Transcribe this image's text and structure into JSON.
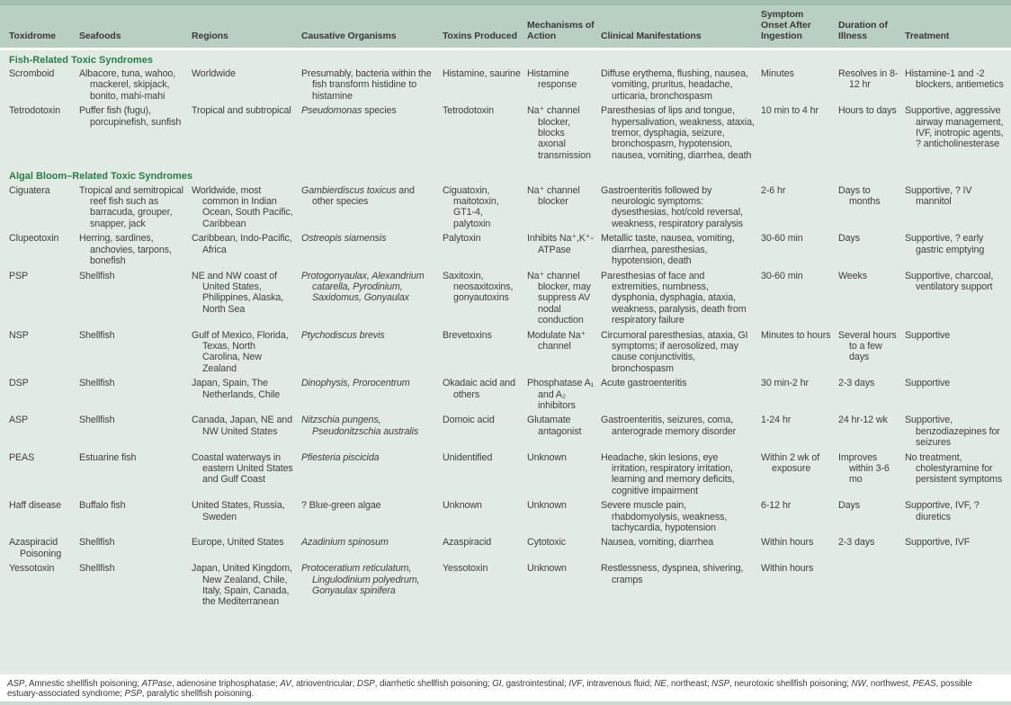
{
  "colors": {
    "header_bg": "#b9cfc2",
    "body_bg": "#e1eae3",
    "section_heading": "#2a7c49",
    "top_strip": "#a3c0af",
    "bottom_strip": "#cbdccf"
  },
  "table": {
    "columns": [
      "Toxidrome",
      "Seafoods",
      "Regions",
      "Causative Organisms",
      "Toxins Produced",
      "Mechanisms of Action",
      "Clinical Manifestations",
      "Symptom Onset After Ingestion",
      "Duration of Illness",
      "Treatment"
    ],
    "sections": [
      {
        "title": "Fish-Related Toxic Syndromes",
        "rows": [
          [
            "Scromboid",
            "Albacore, tuna, wahoo, mackerel, skipjack, bonito, mahi-mahi",
            "Worldwide",
            "Presumably, bacteria within the fish transform histidine to histamine",
            "Histamine, saurine",
            "Histamine response",
            "Diffuse erythema, flushing, nausea, vomiting, pruritus, headache, urticaria, bronchospasm",
            "Minutes",
            "Resolves in 8-12 hr",
            "Histamine-1 and -2 blockers, antiemetics"
          ],
          [
            "Tetrodotoxin",
            "Puffer fish (fugu), porcupinefish, sunfish",
            "Tropical and subtropical",
            [
              {
                "i": "Pseudomonas"
              },
              " species"
            ],
            "Tetrodotoxin",
            "Na⁺ channel blocker, blocks axonal transmission",
            "Paresthesias of lips and tongue, hypersalivation, weakness, ataxia, tremor, dysphagia, seizure, bronchospasm, hypotension, nausea, vomiting, diarrhea, death",
            "10 min to 4 hr",
            "Hours to days",
            "Supportive, aggressive airway management, IVF, inotropic agents, ? anticholinesterase"
          ]
        ]
      },
      {
        "title": "Algal Bloom–Related Toxic Syndromes",
        "rows": [
          [
            "Ciguatera",
            "Tropical and semitropical reef fish such as barracuda, grouper, snapper, jack",
            "Worldwide, most common in Indian Ocean, South Pacific, Caribbean",
            [
              {
                "i": "Gambierdiscus toxicus"
              },
              " and other species"
            ],
            "Ciguatoxin, maitotoxin, GT1-4, palytoxin",
            "Na⁺ channel blocker",
            "Gastroenteritis followed by neurologic symptoms: dysesthesias, hot/cold reversal, weakness, respiratory paralysis",
            "2-6 hr",
            "Days to months",
            "Supportive, ? IV mannitol"
          ],
          [
            "Clupeotoxin",
            "Herring, sardines, anchovies, tarpons, bonefish",
            "Caribbean, Indo-Pacific, Africa",
            [
              {
                "i": "Ostreopis siamensis"
              }
            ],
            "Palytoxin",
            "Inhibits Na⁺,K⁺-ATPase",
            "Metallic taste, nausea, vomiting, diarrhea, paresthesias, hypotension, death",
            "30-60 min",
            "Days",
            "Supportive, ? early gastric emptying"
          ],
          [
            "PSP",
            "Shellfish",
            "NE and NW coast of United States, Philippines, Alaska, North Sea",
            [
              {
                "i": "Protogonyaulax, Alexandrium catarella, Pyrodinium, Saxidomus, Gonyaulax"
              }
            ],
            "Saxitoxin, neosaxitoxins, gonyautoxins",
            "Na⁺ channel blocker, may suppress AV nodal conduction",
            "Paresthesias of face and extremities, numbness, dysphonia, dysphagia, ataxia, weakness, paralysis, death from respiratory failure",
            "30-60 min",
            "Weeks",
            "Supportive, charcoal, ventilatory support"
          ],
          [
            "NSP",
            "Shellfish",
            "Gulf of Mexico, Florida, Texas, North Carolina, New Zealand",
            [
              {
                "i": "Ptychodiscus brevis"
              }
            ],
            "Brevetoxins",
            "Modulate Na⁺ channel",
            "Circumoral paresthesias, ataxia, GI symptoms; if aerosolized, may cause conjunctivitis, bronchospasm",
            "Minutes to hours",
            "Several hours to a few days",
            "Supportive"
          ],
          [
            "DSP",
            "Shellfish",
            "Japan, Spain, The Netherlands, Chile",
            [
              {
                "i": "Dinophysis, Prorocentrum"
              }
            ],
            "Okadaic acid and others",
            "Phosphatase A₁ and A₂ inhibitors",
            "Acute gastroenteritis",
            "30 min-2 hr",
            "2-3 days",
            "Supportive"
          ],
          [
            "ASP",
            "Shellfish",
            "Canada, Japan, NE and NW United States",
            [
              {
                "i": "Nitzschia pungens, Pseudonitzschia australis"
              }
            ],
            "Domoic acid",
            "Glutamate antagonist",
            "Gastroenteritis, seizures, coma, anterograde memory disorder",
            "1-24 hr",
            "24 hr-12 wk",
            "Supportive, benzodiazepines for seizures"
          ],
          [
            "PEAS",
            "Estuarine fish",
            "Coastal waterways in eastern United States and Gulf Coast",
            [
              {
                "i": "Pfiesteria piscicida"
              }
            ],
            "Unidentified",
            "Unknown",
            "Headache, skin lesions, eye irritation, respiratory irritation, learning and memory deficits, cognitive impairment",
            "Within 2 wk of exposure",
            "Improves within 3-6 mo",
            "No treatment, cholestyramine for persistent symptoms"
          ],
          [
            "Haff disease",
            "Buffalo fish",
            "United States, Russia, Sweden",
            "? Blue-green algae",
            "Unknown",
            "Unknown",
            "Severe muscle pain, rhabdomyolysis, weakness, tachycardia, hypotension",
            "6-12 hr",
            "Days",
            "Supportive, IVF, ? diuretics"
          ],
          [
            "Azaspiracid Poisoning",
            "Shellfish",
            "Europe, United States",
            [
              {
                "i": "Azadinium spinosum"
              }
            ],
            "Azaspiracid",
            "Cytotoxic",
            "Nausea, vomiting, diarrhea",
            "Within hours",
            "2-3 days",
            "Supportive, IVF"
          ],
          [
            "Yessotoxin",
            "Shellfish",
            "Japan, United Kingdom, New Zealand, Chile, Italy, Spain, Canada, the Mediterranean",
            [
              {
                "i": "Protoceratium reticulatum, Lingulodinium polyedrum, Gonyaulax spinifera"
              }
            ],
            "Yessotoxin",
            "Unknown",
            "Restlessness, dyspnea, shivering, cramps",
            "Within hours",
            "",
            ""
          ]
        ]
      }
    ]
  },
  "footnote": {
    "segments": [
      {
        "i": "ASP"
      },
      ", Amnestic shellfish poisoning; ",
      {
        "i": "ATPase"
      },
      ", adenosine triphosphatase; ",
      {
        "i": "AV"
      },
      ", atrioventricular; ",
      {
        "i": "DSP"
      },
      ", diarrhetic shellfish poisoning; ",
      {
        "i": "GI"
      },
      ", gastrointestinal; ",
      {
        "i": "IVF"
      },
      ", intravenous fluid; ",
      {
        "i": "NE"
      },
      ", northeast; ",
      {
        "i": "NSP"
      },
      ", neurotoxic shellfish poisoning; ",
      {
        "i": "NW"
      },
      ", northwest, ",
      {
        "i": "PEAS"
      },
      ", possible estuary-associated syndrome; ",
      {
        "i": "PSP"
      },
      ", paralytic shellfish poisoning."
    ]
  }
}
